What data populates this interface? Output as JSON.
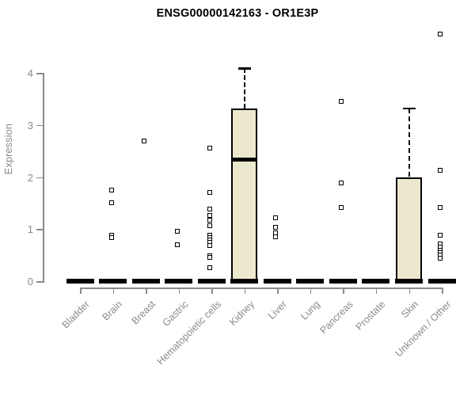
{
  "title": "ENSG00000142163 - OR1E3P",
  "chart_data": {
    "type": "boxplot",
    "title": "ENSG00000142163 - OR1E3P",
    "xlabel": "",
    "ylabel": "Expression",
    "yticks": [
      0,
      1,
      2,
      3,
      4
    ],
    "ylim": [
      0,
      4.8
    ],
    "grid": false,
    "legend": "none",
    "axis_color": "#8a8a8a",
    "box_fill_color": "#ECE8CE",
    "box_line_color": "#000000",
    "categories": [
      "Bladder",
      "Brain",
      "Breast",
      "Gastric",
      "Hematopoietic cells",
      "Kidney",
      "Liver",
      "Lung",
      "Pancreas",
      "Prostate",
      "Skin",
      "Unknown / Other"
    ],
    "boxes": [
      {
        "category": "Bladder",
        "q1": 0,
        "median": 0,
        "q3": 0,
        "whisker_low": 0,
        "whisker_high": 0,
        "outliers": []
      },
      {
        "category": "Brain",
        "q1": 0,
        "median": 0,
        "q3": 0,
        "whisker_low": 0,
        "whisker_high": 0,
        "outliers": [
          1.75,
          1.5,
          0.88,
          0.84
        ]
      },
      {
        "category": "Breast",
        "q1": 0,
        "median": 0,
        "q3": 0,
        "whisker_low": 0,
        "whisker_high": 0,
        "outliers": [
          2.69
        ]
      },
      {
        "category": "Gastric",
        "q1": 0,
        "median": 0,
        "q3": 0,
        "whisker_low": 0,
        "whisker_high": 0,
        "outliers": [
          0.96,
          0.7
        ]
      },
      {
        "category": "Hematopoietic cells",
        "q1": 0,
        "median": 0,
        "q3": 0,
        "whisker_low": 0,
        "whisker_high": 0,
        "outliers": [
          2.55,
          1.7,
          1.38,
          1.26,
          1.17,
          1.06,
          0.88,
          0.84,
          0.79,
          0.75,
          0.68,
          0.48,
          0.45,
          0.26
        ]
      },
      {
        "category": "Kidney",
        "q1": 0,
        "median": 2.34,
        "q3": 3.31,
        "whisker_low": 0,
        "whisker_high": 4.09,
        "outliers": []
      },
      {
        "category": "Liver",
        "q1": 0,
        "median": 0,
        "q3": 0,
        "whisker_low": 0,
        "whisker_high": 0,
        "outliers": [
          1.22,
          1.03,
          0.93,
          0.85
        ]
      },
      {
        "category": "Lung",
        "q1": 0,
        "median": 0,
        "q3": 0,
        "whisker_low": 0,
        "whisker_high": 0,
        "outliers": []
      },
      {
        "category": "Pancreas",
        "q1": 0,
        "median": 0,
        "q3": 0,
        "whisker_low": 0,
        "whisker_high": 0,
        "outliers": [
          3.45,
          1.89,
          1.41
        ]
      },
      {
        "category": "Prostate",
        "q1": 0,
        "median": 0,
        "q3": 0,
        "whisker_low": 0,
        "whisker_high": 0,
        "outliers": []
      },
      {
        "category": "Skin",
        "q1": 0,
        "median": 0,
        "q3": 2.0,
        "whisker_low": 0,
        "whisker_high": 3.32,
        "outliers": []
      },
      {
        "category": "Unknown / Other",
        "q1": 0,
        "median": 0,
        "q3": 0,
        "whisker_low": 0,
        "whisker_high": 0,
        "outliers": [
          4.75,
          2.13,
          1.41,
          0.88,
          0.71,
          0.65,
          0.6,
          0.55,
          0.5,
          0.44
        ]
      }
    ]
  }
}
